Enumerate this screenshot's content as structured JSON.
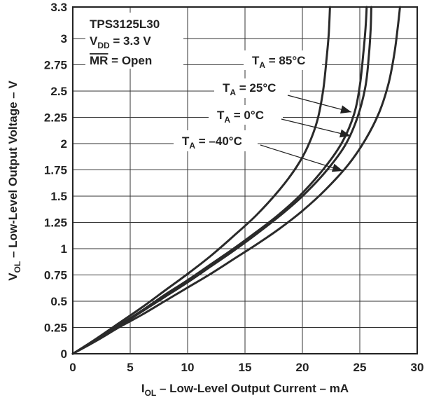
{
  "chart_data": {
    "type": "line",
    "xlabel": {
      "main": "I",
      "sub": "OL",
      "rest": " – Low-Level Output Current – mA"
    },
    "ylabel": {
      "main": "V",
      "sub": "OL",
      "rest": " – Low-Level Output Voltage – V"
    },
    "xlim": [
      0,
      30
    ],
    "ylim": [
      0,
      3.3
    ],
    "x_ticks": [
      "0",
      "5",
      "10",
      "15",
      "20",
      "25",
      "30"
    ],
    "y_ticks": [
      "0",
      "0.25",
      "0.5",
      "0.75",
      "1",
      "1.25",
      "1.5",
      "1.75",
      "2",
      "2.25",
      "2.5",
      "2.75",
      "3",
      "3.3"
    ],
    "grid": true,
    "device_label": "TPS3125L30",
    "conditions": [
      {
        "main": "V",
        "sub": "DD",
        "rest": " = 3.3 V"
      },
      {
        "main": "MR",
        "sub": "",
        "rest": " = Open"
      }
    ],
    "series": [
      {
        "label": {
          "main": "T",
          "sub": "A",
          "rest": " = 85°C"
        },
        "points": [
          [
            0,
            0
          ],
          [
            2,
            0.14
          ],
          [
            4,
            0.29
          ],
          [
            6,
            0.44
          ],
          [
            8,
            0.6
          ],
          [
            10,
            0.76
          ],
          [
            12,
            0.93
          ],
          [
            14,
            1.12
          ],
          [
            16,
            1.32
          ],
          [
            18,
            1.56
          ],
          [
            19.5,
            1.78
          ],
          [
            20.5,
            1.98
          ],
          [
            21.3,
            2.22
          ],
          [
            21.8,
            2.5
          ],
          [
            22.1,
            2.8
          ],
          [
            22.3,
            3.05
          ],
          [
            22.4,
            3.3
          ]
        ]
      },
      {
        "label": {
          "main": "T",
          "sub": "A",
          "rest": " = 25°C"
        },
        "points": [
          [
            0,
            0
          ],
          [
            2,
            0.13
          ],
          [
            4,
            0.27
          ],
          [
            6,
            0.41
          ],
          [
            8,
            0.56
          ],
          [
            10,
            0.7
          ],
          [
            12,
            0.85
          ],
          [
            14,
            1.0
          ],
          [
            16,
            1.16
          ],
          [
            18,
            1.33
          ],
          [
            20,
            1.53
          ],
          [
            22,
            1.78
          ],
          [
            23.5,
            2.02
          ],
          [
            24.5,
            2.28
          ],
          [
            25.0,
            2.55
          ],
          [
            25.3,
            2.85
          ],
          [
            25.5,
            3.1
          ],
          [
            25.6,
            3.3
          ]
        ]
      },
      {
        "label": {
          "main": "T",
          "sub": "A",
          "rest": " = 0°C"
        },
        "points": [
          [
            0,
            0
          ],
          [
            2,
            0.13
          ],
          [
            4,
            0.26
          ],
          [
            6,
            0.4
          ],
          [
            8,
            0.54
          ],
          [
            10,
            0.68
          ],
          [
            12,
            0.83
          ],
          [
            14,
            0.98
          ],
          [
            16,
            1.14
          ],
          [
            18,
            1.31
          ],
          [
            20,
            1.5
          ],
          [
            22,
            1.73
          ],
          [
            23.7,
            1.98
          ],
          [
            24.8,
            2.25
          ],
          [
            25.5,
            2.55
          ],
          [
            25.8,
            2.85
          ],
          [
            25.95,
            3.1
          ],
          [
            26.0,
            3.3
          ]
        ]
      },
      {
        "label": {
          "main": "T",
          "sub": "A",
          "rest": " = –40°C"
        },
        "points": [
          [
            0,
            0
          ],
          [
            2,
            0.12
          ],
          [
            4,
            0.25
          ],
          [
            6,
            0.37
          ],
          [
            8,
            0.5
          ],
          [
            10,
            0.63
          ],
          [
            12,
            0.76
          ],
          [
            14,
            0.9
          ],
          [
            16,
            1.04
          ],
          [
            18,
            1.19
          ],
          [
            20,
            1.36
          ],
          [
            22,
            1.56
          ],
          [
            24,
            1.8
          ],
          [
            25.5,
            2.04
          ],
          [
            26.7,
            2.3
          ],
          [
            27.5,
            2.57
          ],
          [
            28.0,
            2.85
          ],
          [
            28.3,
            3.1
          ],
          [
            28.5,
            3.3
          ]
        ]
      }
    ]
  }
}
